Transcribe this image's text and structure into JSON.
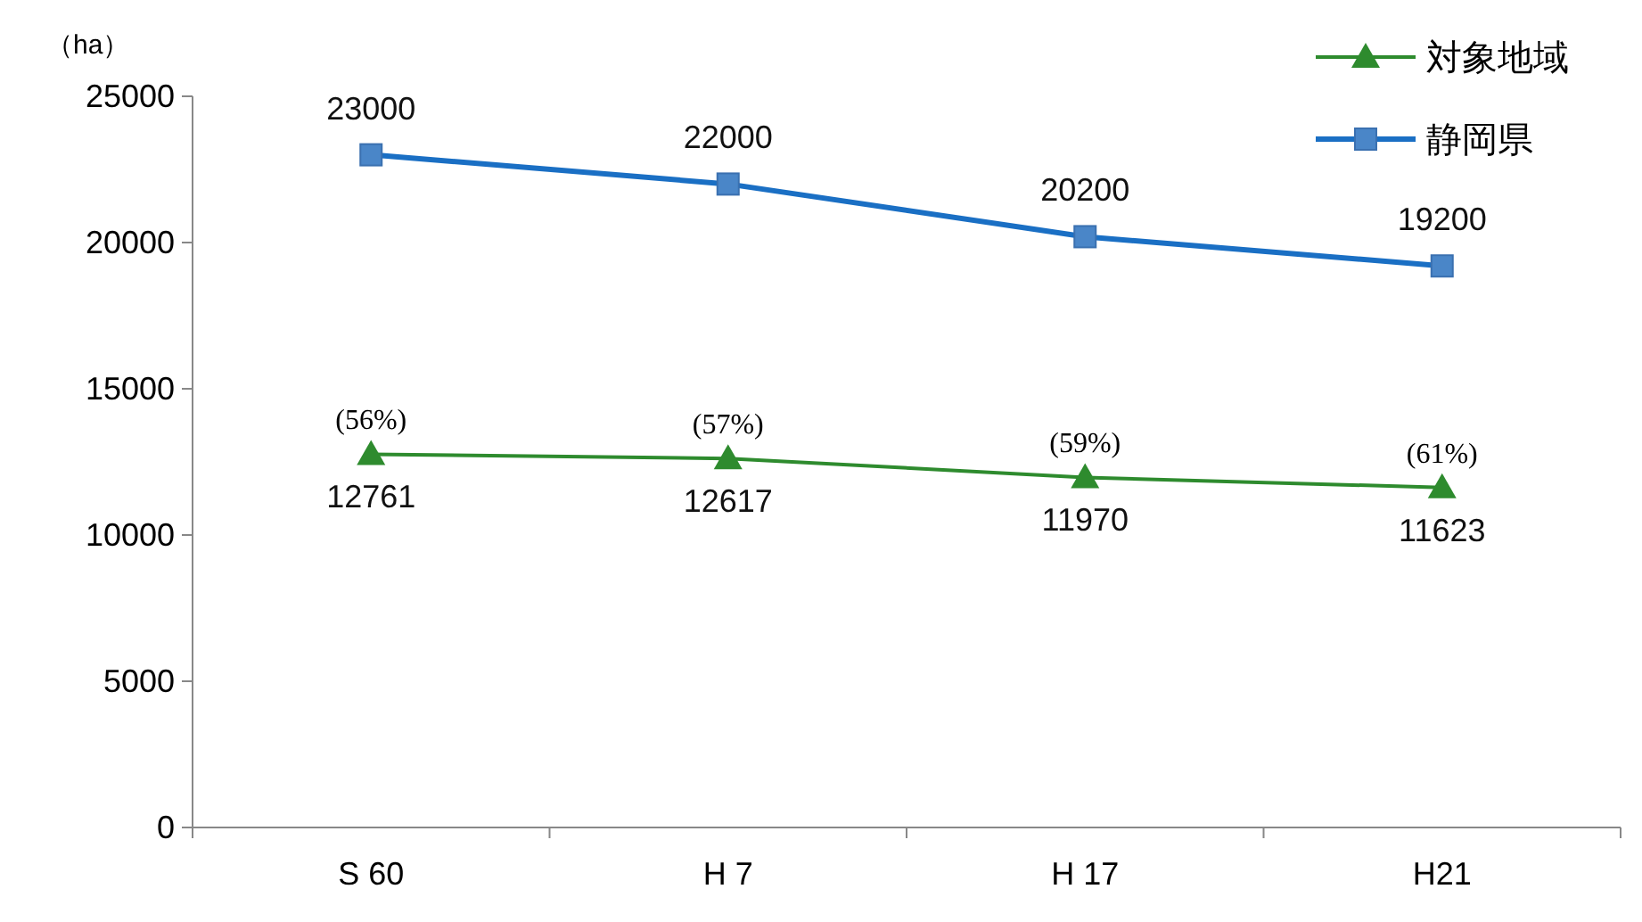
{
  "chart_data": {
    "type": "line",
    "ylabel": "（ha）",
    "categories": [
      "S 60",
      "H 7",
      "H 17",
      "H21"
    ],
    "series": [
      {
        "name": "対象地域",
        "color": "#2e8b2e",
        "values": [
          12761,
          12617,
          11970,
          11623
        ],
        "marker": "triangle"
      },
      {
        "name": "静岡県",
        "color": "#1a6fc4",
        "values": [
          23000,
          22000,
          20200,
          19200
        ],
        "marker": "square"
      }
    ],
    "ylim": [
      0,
      25000
    ],
    "yticks": [
      0,
      5000,
      10000,
      15000,
      20000,
      25000
    ],
    "grid": false,
    "legend": "top right",
    "data_labels": true,
    "annotations": [
      {
        "text": "(56%)",
        "x": "S 60",
        "y": 12761
      },
      {
        "text": "(57%)",
        "x": "H 7",
        "y": 12617
      },
      {
        "text": "(59%)",
        "x": "H 17",
        "y": 11970
      },
      {
        "text": "(61%)",
        "x": "H21",
        "y": 11623
      }
    ]
  }
}
